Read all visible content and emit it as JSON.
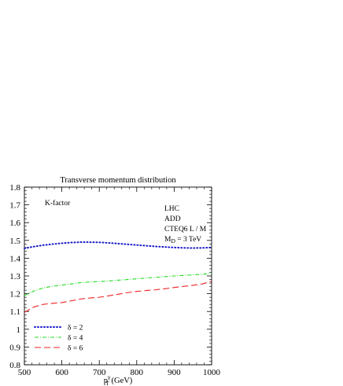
{
  "chart_data": {
    "type": "line",
    "title": "Transverse momentum distribution",
    "xlabel": {
      "main": "p",
      "sup": "γ",
      "sub": "T",
      "unit": " (GeV)"
    },
    "ylabel": "",
    "xlim": [
      500,
      1000
    ],
    "ylim": [
      0.8,
      1.8
    ],
    "x_ticks": [
      500,
      600,
      700,
      800,
      900,
      1000
    ],
    "y_ticks": [
      0.8,
      0.9,
      1.0,
      1.1,
      1.2,
      1.3,
      1.4,
      1.5,
      1.6,
      1.7,
      1.8
    ],
    "y_tick_labels": [
      "0.8",
      "0.9",
      "1",
      "1.1",
      "1.2",
      "1.3",
      "1.4",
      "1.5",
      "1.6",
      "1.7",
      "1.8"
    ],
    "grid": false,
    "legend_position": "bottom-left",
    "annotations": {
      "kfactor": "K-factor",
      "collider": "LHC",
      "model": "ADD",
      "pdf": "CTEQ6 L / M",
      "scale_main": "M",
      "scale_sub": "D",
      "scale_value": " = 3 TeV"
    },
    "series": [
      {
        "name": "δ = 2",
        "color": "#1a1acc",
        "style": "dotted",
        "x": [
          500,
          525,
          550,
          575,
          600,
          625,
          650,
          675,
          700,
          725,
          750,
          775,
          800,
          825,
          850,
          875,
          900,
          925,
          950,
          975,
          1000
        ],
        "y": [
          1.455,
          1.465,
          1.473,
          1.479,
          1.484,
          1.488,
          1.49,
          1.49,
          1.489,
          1.486,
          1.482,
          1.478,
          1.474,
          1.47,
          1.466,
          1.463,
          1.46,
          1.458,
          1.457,
          1.458,
          1.46
        ]
      },
      {
        "name": "δ = 4",
        "color": "#22dd22",
        "style": "dash-dot",
        "x": [
          500,
          525,
          550,
          575,
          600,
          625,
          650,
          675,
          700,
          725,
          750,
          775,
          800,
          825,
          850,
          875,
          900,
          925,
          950,
          975,
          1000
        ],
        "y": [
          1.19,
          1.215,
          1.232,
          1.242,
          1.248,
          1.255,
          1.262,
          1.266,
          1.268,
          1.272,
          1.276,
          1.28,
          1.284,
          1.288,
          1.292,
          1.296,
          1.3,
          1.303,
          1.306,
          1.309,
          1.315
        ]
      },
      {
        "name": "δ = 6",
        "color": "#ee2222",
        "style": "dashed",
        "x": [
          500,
          525,
          550,
          575,
          600,
          625,
          650,
          675,
          700,
          725,
          750,
          775,
          800,
          825,
          850,
          875,
          900,
          925,
          950,
          975,
          1000
        ],
        "y": [
          1.095,
          1.125,
          1.14,
          1.146,
          1.15,
          1.16,
          1.17,
          1.176,
          1.18,
          1.188,
          1.197,
          1.206,
          1.213,
          1.218,
          1.222,
          1.228,
          1.235,
          1.241,
          1.247,
          1.255,
          1.27
        ]
      }
    ]
  }
}
